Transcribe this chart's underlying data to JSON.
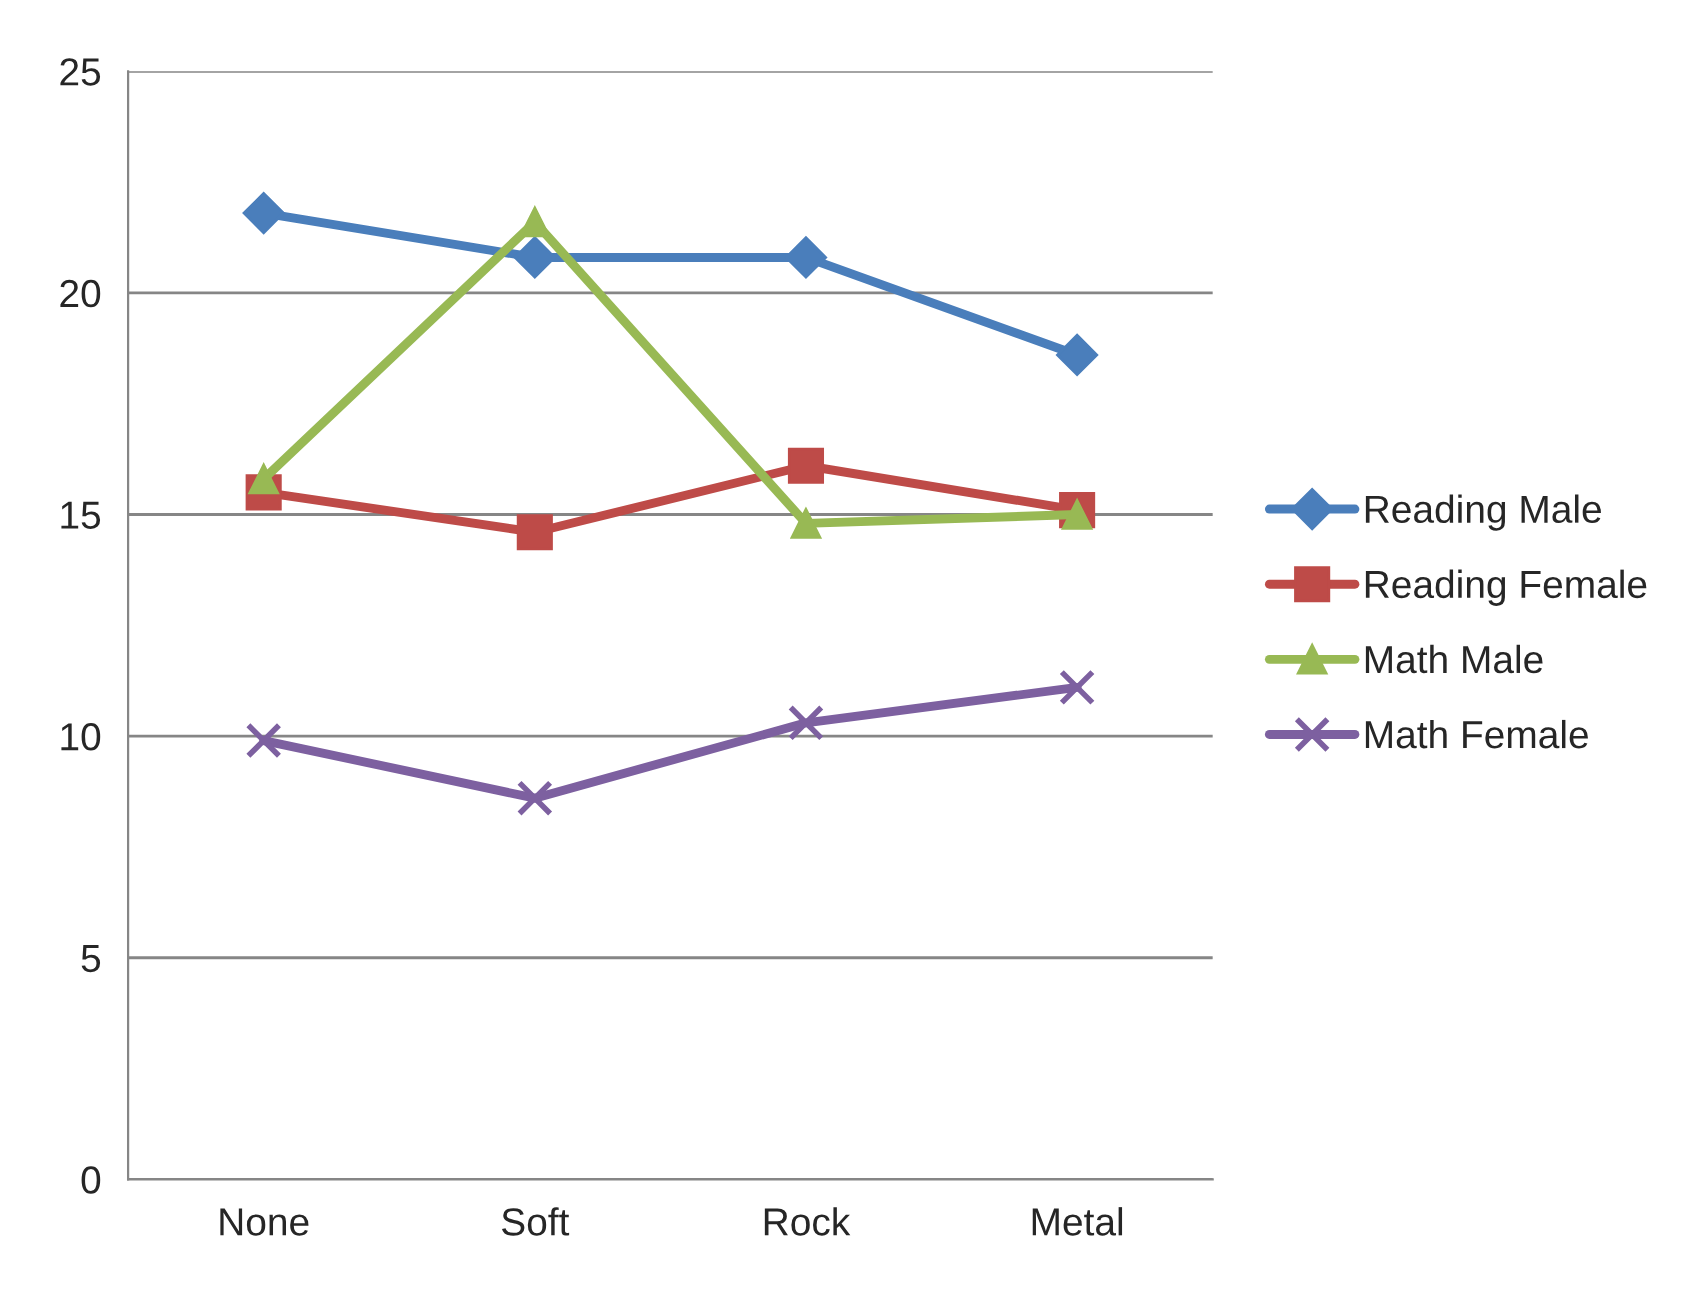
{
  "chart_data": {
    "type": "line",
    "categories": [
      "None",
      "Soft",
      "Rock",
      "Metal"
    ],
    "series": [
      {
        "name": "Reading Male",
        "color": "#4a7ebb",
        "marker": "diamond",
        "values": [
          21.8,
          20.8,
          20.8,
          18.6
        ]
      },
      {
        "name": "Reading Female",
        "color": "#be4b48",
        "marker": "square",
        "values": [
          15.5,
          14.6,
          16.1,
          15.1
        ]
      },
      {
        "name": "Math Male",
        "color": "#98b954",
        "marker": "triangle",
        "values": [
          15.8,
          21.6,
          14.8,
          15.0
        ]
      },
      {
        "name": "Math Female",
        "color": "#7d60a0",
        "marker": "cross",
        "values": [
          9.9,
          8.6,
          10.3,
          11.1
        ]
      }
    ],
    "ylim": [
      0,
      25
    ],
    "yticks": [
      0,
      5,
      10,
      15,
      20,
      25
    ],
    "grid": "y",
    "legend": "right",
    "line_style": "solid"
  }
}
